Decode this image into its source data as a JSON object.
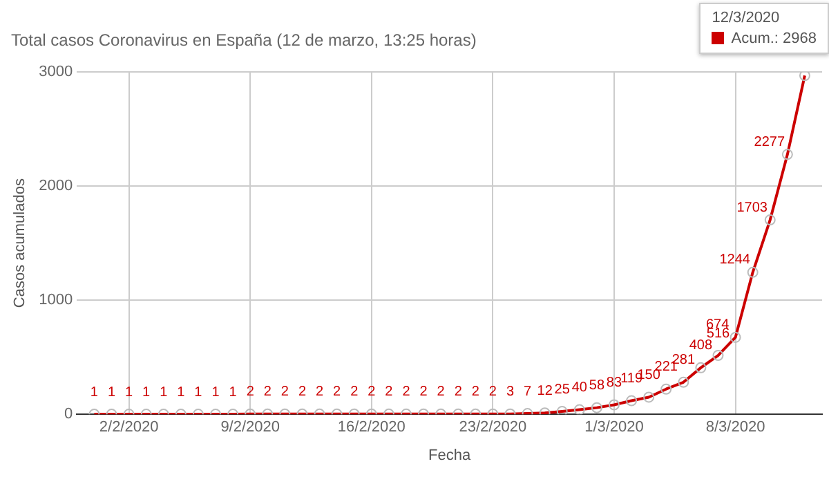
{
  "chart_data": {
    "type": "line",
    "title": "Total casos Coronavirus en España (12 de marzo, 13:25 horas)",
    "xlabel": "Fecha",
    "ylabel": "Casos acumulados",
    "x": [
      "2020-01-31",
      "2020-02-01",
      "2020-02-02",
      "2020-02-03",
      "2020-02-04",
      "2020-02-05",
      "2020-02-06",
      "2020-02-07",
      "2020-02-08",
      "2020-02-09",
      "2020-02-10",
      "2020-02-11",
      "2020-02-12",
      "2020-02-13",
      "2020-02-14",
      "2020-02-15",
      "2020-02-16",
      "2020-02-17",
      "2020-02-18",
      "2020-02-19",
      "2020-02-20",
      "2020-02-21",
      "2020-02-22",
      "2020-02-23",
      "2020-02-24",
      "2020-02-25",
      "2020-02-26",
      "2020-02-27",
      "2020-02-28",
      "2020-02-29",
      "2020-03-01",
      "2020-03-02",
      "2020-03-03",
      "2020-03-04",
      "2020-03-05",
      "2020-03-06",
      "2020-03-07",
      "2020-03-08",
      "2020-03-09",
      "2020-03-10",
      "2020-03-11",
      "2020-03-12"
    ],
    "series": [
      {
        "color": "#cc0000",
        "values": [
          1,
          1,
          1,
          1,
          1,
          1,
          1,
          1,
          1,
          2,
          2,
          2,
          2,
          2,
          2,
          2,
          2,
          2,
          2,
          2,
          2,
          2,
          2,
          2,
          3,
          7,
          12,
          25,
          40,
          58,
          83,
          119,
          150,
          221,
          281,
          408,
          516,
          674,
          1244,
          1703,
          2277,
          2968
        ],
        "value_labels": [
          "1",
          "1",
          "1",
          "1",
          "1",
          "1",
          "1",
          "1",
          "1",
          "2",
          "2",
          "2",
          "2",
          "2",
          "2",
          "2",
          "2",
          "2",
          "2",
          "2",
          "2",
          "2",
          "2",
          "2",
          "3",
          "7",
          "12",
          "25",
          "40",
          "58",
          "83",
          "119",
          "150",
          "221",
          "281",
          "408",
          "516",
          "674",
          "1244",
          "1703",
          "2277",
          null
        ]
      }
    ],
    "xlim": [
      "2020-01-30",
      "2020-03-13"
    ],
    "xticks": [
      {
        "value": "2020-02-02",
        "label": "2/2/2020"
      },
      {
        "value": "2020-02-09",
        "label": "9/2/2020"
      },
      {
        "value": "2020-02-16",
        "label": "16/2/2020"
      },
      {
        "value": "2020-02-23",
        "label": "23/2/2020"
      },
      {
        "value": "2020-03-01",
        "label": "1/3/2020"
      },
      {
        "value": "2020-03-08",
        "label": "8/3/2020"
      }
    ],
    "ylim": [
      0,
      3000
    ],
    "yticks": [
      0,
      1000,
      2000,
      3000
    ],
    "grid": true,
    "marker": "circle",
    "line_style": "solid",
    "annotations": [
      "12/3/2020",
      "Acum.: 2968"
    ]
  }
}
